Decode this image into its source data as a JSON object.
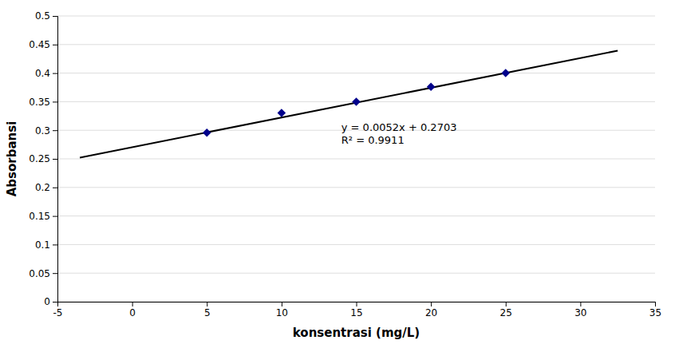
{
  "chart_data": {
    "type": "scatter",
    "xlabel": "konsentrasi (mg/L)",
    "ylabel": "Absorbansi",
    "xlim": [
      -5,
      35
    ],
    "ylim": [
      0,
      0.5
    ],
    "xticks": [
      -5,
      0,
      5,
      10,
      15,
      20,
      25,
      30,
      35
    ],
    "yticks": [
      0,
      0.05,
      0.1,
      0.15,
      0.2,
      0.25,
      0.3,
      0.35,
      0.4,
      0.45,
      0.5
    ],
    "grid": "y",
    "series": [
      {
        "type": "scatter",
        "marker": "diamond",
        "color": "#00008B",
        "x": [
          5,
          10,
          15,
          20,
          25
        ],
        "values": [
          0.2958,
          0.3302,
          0.3497,
          0.3762,
          0.4003
        ]
      },
      {
        "type": "line",
        "line_style": "solid",
        "color": "#000000",
        "x": [
          -3.5,
          32.5
        ],
        "values": [
          0.2521,
          0.4393
        ]
      }
    ],
    "annotations": [
      {
        "x": 14,
        "y": 0.315,
        "text": [
          "y = 0.0052x + 0.2703",
          "R² = 0.9911"
        ]
      }
    ]
  }
}
